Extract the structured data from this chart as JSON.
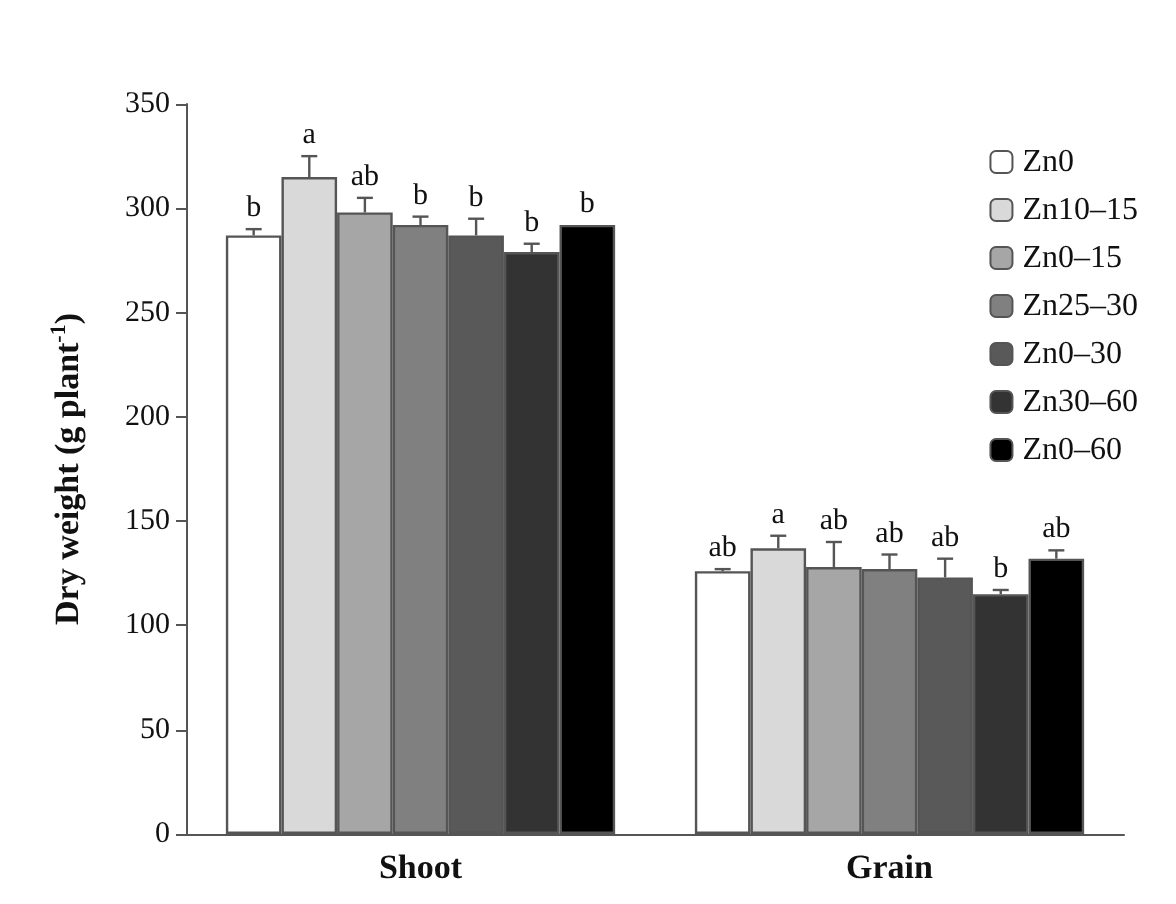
{
  "chart_data": {
    "type": "bar",
    "ylabel": "Dry weight (g plant$^{-1}$)",
    "categories": [
      "Shoot",
      "Grain"
    ],
    "series": [
      {
        "name": "Zn0",
        "color": "#ffffff",
        "values": [
          287,
          126
        ],
        "errors": [
          3,
          1
        ],
        "value_labels": [
          "b",
          "ab"
        ]
      },
      {
        "name": "Zn10–15",
        "color": "#d9d9d9",
        "values": [
          315,
          137
        ],
        "errors": [
          10,
          6
        ],
        "value_labels": [
          "a",
          "a"
        ]
      },
      {
        "name": "Zn0–15",
        "color": "#a6a6a6",
        "values": [
          298,
          128
        ],
        "errors": [
          7,
          12
        ],
        "value_labels": [
          "ab",
          "ab"
        ]
      },
      {
        "name": "Zn25–30",
        "color": "#808080",
        "values": [
          292,
          127
        ],
        "errors": [
          4,
          7
        ],
        "value_labels": [
          "b",
          "ab"
        ]
      },
      {
        "name": "Zn0–30",
        "color": "#595959",
        "values": [
          287,
          123
        ],
        "errors": [
          8,
          9
        ],
        "value_labels": [
          "b",
          "ab"
        ]
      },
      {
        "name": "Zn30–60",
        "color": "#333333",
        "values": [
          279,
          115
        ],
        "errors": [
          4,
          2
        ],
        "value_labels": [
          "b",
          "b"
        ]
      },
      {
        "name": "Zn0–60",
        "color": "#000000",
        "values": [
          292,
          132
        ],
        "errors": [
          null,
          4
        ],
        "value_labels": [
          "b",
          "ab"
        ]
      }
    ],
    "ylim": [
      0,
      350
    ],
    "yticks": [
      0,
      50,
      100,
      150,
      200,
      250,
      300,
      350
    ],
    "legend": "top right",
    "grid": false
  }
}
